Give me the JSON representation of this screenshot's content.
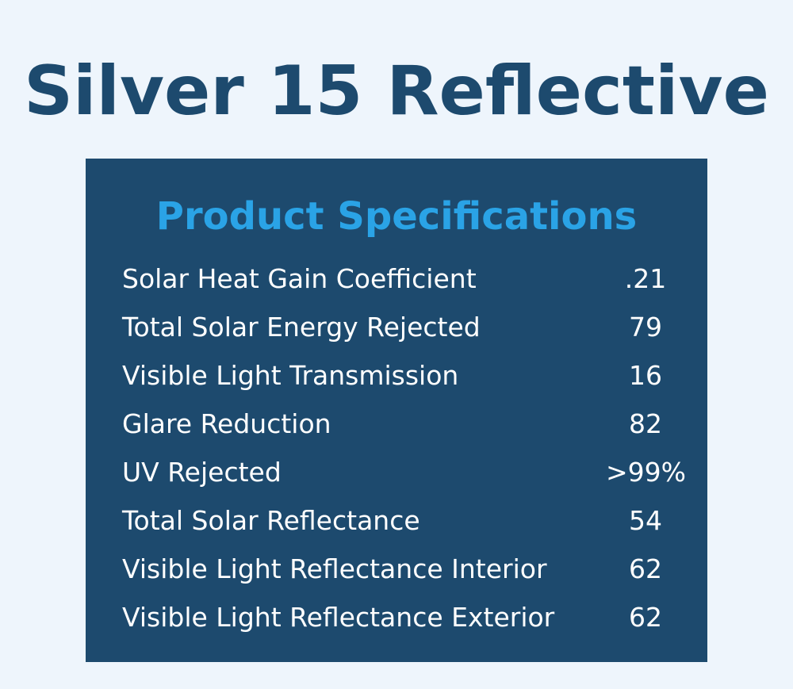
{
  "header": {
    "title": "Silver 15 Reflective"
  },
  "table": {
    "title": "Product Specifications",
    "rows": [
      [
        "Solar Heat Gain Coefficient",
        ".21"
      ],
      [
        "Total Solar Energy Rejected",
        "79"
      ],
      [
        "Visible Light Transmission",
        "16"
      ],
      [
        "Glare Reduction",
        "82"
      ],
      [
        "UV Rejected",
        ">99%"
      ],
      [
        "Total Solar Reflectance",
        "54"
      ],
      [
        "Visible Light Reflectance Interior",
        "62"
      ],
      [
        "Visible Light Reflectance Exterior",
        "62"
      ]
    ]
  }
}
